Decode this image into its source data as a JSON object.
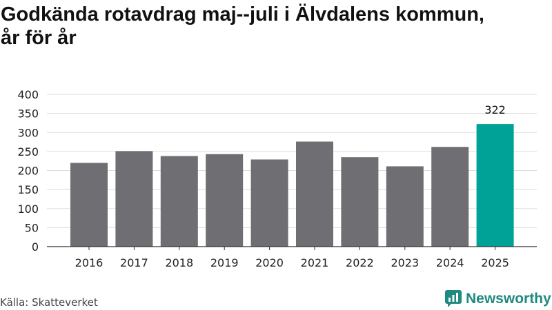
{
  "title_lines": [
    "Godkända rotavdrag maj--juli i Älvdalens kommun,",
    "år för år"
  ],
  "source": "Källa: Skatteverket",
  "brand": {
    "name": "Newsworthy",
    "icon": "newsworthy-logo-icon",
    "color": "#1f8a80"
  },
  "colors": {
    "bar": "#6f6e73",
    "highlight": "#00a298",
    "grid": "#dddddd"
  },
  "chart_data": {
    "type": "bar",
    "categories": [
      "2016",
      "2017",
      "2018",
      "2019",
      "2020",
      "2021",
      "2022",
      "2023",
      "2024",
      "2025"
    ],
    "values": [
      220,
      251,
      238,
      243,
      229,
      276,
      235,
      211,
      262,
      322
    ],
    "ylim": [
      0,
      400
    ],
    "yticks": [
      0,
      50,
      100,
      150,
      200,
      250,
      300,
      350,
      400
    ],
    "highlight_index": 9,
    "data_labels": [
      {
        "index": 9,
        "text": "322"
      }
    ],
    "grid": true,
    "legend": "none"
  }
}
